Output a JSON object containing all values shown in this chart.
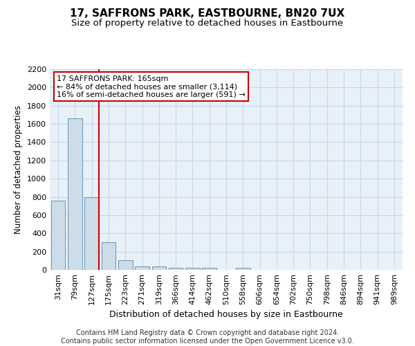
{
  "title": "17, SAFFRONS PARK, EASTBOURNE, BN20 7UX",
  "subtitle": "Size of property relative to detached houses in Eastbourne",
  "xlabel": "Distribution of detached houses by size in Eastbourne",
  "ylabel": "Number of detached properties",
  "categories": [
    "31sqm",
    "79sqm",
    "127sqm",
    "175sqm",
    "223sqm",
    "271sqm",
    "319sqm",
    "366sqm",
    "414sqm",
    "462sqm",
    "510sqm",
    "558sqm",
    "606sqm",
    "654sqm",
    "702sqm",
    "750sqm",
    "798sqm",
    "846sqm",
    "894sqm",
    "941sqm",
    "989sqm"
  ],
  "values": [
    760,
    1660,
    800,
    300,
    110,
    40,
    35,
    25,
    20,
    25,
    0,
    20,
    0,
    0,
    0,
    0,
    0,
    0,
    0,
    0,
    0
  ],
  "bar_color": "#ccdce8",
  "bar_edge_color": "#5588aa",
  "grid_color": "#c8d8e8",
  "background_color": "#e8f0f8",
  "annotation_line1": "17 SAFFRONS PARK: 165sqm",
  "annotation_line2": "← 84% of detached houses are smaller (3,114)",
  "annotation_line3": "16% of semi-detached houses are larger (591) →",
  "annotation_box_color": "#ffffff",
  "annotation_border_color": "#cc0000",
  "vline_color": "#cc0000",
  "ylim": [
    0,
    2200
  ],
  "yticks": [
    0,
    200,
    400,
    600,
    800,
    1000,
    1200,
    1400,
    1600,
    1800,
    2000,
    2200
  ],
  "footer_text": "Contains HM Land Registry data © Crown copyright and database right 2024.\nContains public sector information licensed under the Open Government Licence v3.0.",
  "title_fontsize": 11,
  "subtitle_fontsize": 9.5,
  "xlabel_fontsize": 9,
  "ylabel_fontsize": 8.5,
  "tick_fontsize": 8,
  "footer_fontsize": 7
}
